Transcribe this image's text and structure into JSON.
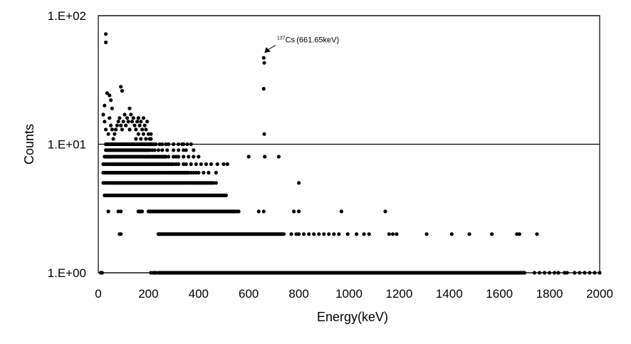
{
  "chart_data": {
    "type": "scatter",
    "title": "",
    "xlabel": "Energy(keV)",
    "ylabel": "Counts",
    "xlim": [
      0,
      2000
    ],
    "ylim": [
      1,
      100
    ],
    "yscale": "log",
    "x_ticks": [
      "0",
      "200",
      "400",
      "600",
      "800",
      "1000",
      "1200",
      "1400",
      "1600",
      "1800",
      "2000"
    ],
    "y_ticks": [
      "1.E+00",
      "1.E+01",
      "1.E+02"
    ],
    "grid": "horizontal major lines",
    "legend": "none",
    "marker_color": "#000000",
    "annotation": {
      "superscript": "137",
      "text": "Cs (661.65keV)",
      "x": 661.65,
      "y": 45
    },
    "points": [
      [
        30,
        72
      ],
      [
        30,
        62
      ],
      [
        25,
        20
      ],
      [
        35,
        25
      ],
      [
        45,
        24
      ],
      [
        50,
        22
      ],
      [
        55,
        19
      ],
      [
        90,
        28
      ],
      [
        95,
        26
      ],
      [
        125,
        19
      ],
      [
        660,
        47
      ],
      [
        662,
        43
      ],
      [
        660,
        27
      ],
      [
        662,
        12
      ],
      [
        664,
        8
      ],
      [
        600,
        8
      ],
      [
        720,
        8
      ],
      [
        800,
        5
      ],
      [
        20,
        17
      ],
      [
        25,
        15
      ],
      [
        30,
        13
      ],
      [
        40,
        12
      ],
      [
        45,
        16
      ],
      [
        50,
        14
      ],
      [
        55,
        13
      ],
      [
        60,
        11
      ],
      [
        65,
        12
      ],
      [
        70,
        13
      ],
      [
        75,
        14
      ],
      [
        80,
        15
      ],
      [
        85,
        16
      ],
      [
        90,
        14
      ],
      [
        95,
        13
      ],
      [
        100,
        15
      ],
      [
        105,
        17
      ],
      [
        110,
        14
      ],
      [
        115,
        16
      ],
      [
        120,
        15
      ],
      [
        125,
        13
      ],
      [
        130,
        17
      ],
      [
        135,
        15
      ],
      [
        140,
        16
      ],
      [
        145,
        14
      ],
      [
        150,
        13
      ],
      [
        155,
        15
      ],
      [
        160,
        16
      ],
      [
        165,
        14
      ],
      [
        170,
        15
      ],
      [
        175,
        13
      ],
      [
        180,
        16
      ],
      [
        185,
        14
      ],
      [
        190,
        13
      ],
      [
        195,
        15
      ],
      [
        200,
        12
      ],
      [
        205,
        11
      ],
      [
        210,
        12
      ],
      [
        150,
        11
      ],
      [
        160,
        12
      ],
      [
        170,
        11
      ],
      [
        180,
        12
      ],
      [
        190,
        11
      ],
      [
        200,
        10
      ],
      [
        210,
        11
      ],
      [
        1145,
        3
      ],
      [
        970,
        3
      ],
      [
        800,
        3
      ],
      [
        780,
        3
      ],
      [
        660,
        3
      ],
      [
        640,
        3
      ],
      [
        240,
        2
      ],
      [
        1310,
        2
      ],
      [
        1410,
        2
      ],
      [
        1480,
        2
      ],
      [
        1570,
        2
      ],
      [
        1670,
        2
      ],
      [
        1680,
        2
      ],
      [
        1750,
        2
      ],
      [
        10,
        1
      ],
      [
        15,
        1
      ]
    ],
    "series": [
      {
        "y": 10,
        "x_start": 30,
        "x_end": 215,
        "step": 5,
        "extra_x": [
          220,
          225,
          230,
          245,
          255,
          270,
          280,
          300,
          320,
          335,
          340,
          355,
          370
        ]
      },
      {
        "y": 9,
        "x_start": 30,
        "x_end": 205,
        "step": 5,
        "extra_x": [
          215,
          225,
          240,
          255,
          275,
          300,
          320,
          340,
          350,
          380
        ]
      },
      {
        "y": 8,
        "x_start": 25,
        "x_end": 270,
        "step": 5,
        "extra_x": [
          280,
          300,
          310,
          320,
          340,
          360,
          380,
          400
        ]
      },
      {
        "y": 7,
        "x_start": 20,
        "x_end": 300,
        "step": 5,
        "extra_x": [
          310,
          320,
          340,
          350,
          370,
          390,
          410,
          430,
          450,
          475,
          500,
          515
        ]
      },
      {
        "y": 6,
        "x_start": 20,
        "x_end": 360,
        "step": 5,
        "extra_x": [
          370,
          380,
          390,
          400,
          420,
          440,
          470
        ]
      },
      {
        "y": 5,
        "x_start": 20,
        "x_end": 460,
        "step": 5,
        "extra_x": [
          470
        ]
      },
      {
        "y": 4,
        "x_start": 25,
        "x_end": 510,
        "step": 5,
        "extra_x": []
      },
      {
        "y": 3,
        "x_start": 200,
        "x_end": 560,
        "step": 5,
        "extra_x": [
          40,
          80,
          90,
          160,
          165,
          170,
          175
        ]
      },
      {
        "y": 2,
        "x_start": 240,
        "x_end": 740,
        "step": 5,
        "extra_x": [
          85,
          90,
          770,
          790,
          800,
          820,
          840,
          860,
          880,
          900,
          920,
          940,
          960,
          995,
          1030,
          1060,
          1080,
          1160,
          1175,
          1190
        ]
      },
      {
        "y": 1,
        "x_start": 240,
        "x_end": 1700,
        "step": 5,
        "extra_x": [
          210,
          220,
          225,
          230,
          1740,
          1760,
          1780,
          1800,
          1820,
          1835,
          1860,
          1870,
          1900,
          1920,
          1940,
          1960,
          1980,
          2000
        ]
      }
    ]
  }
}
